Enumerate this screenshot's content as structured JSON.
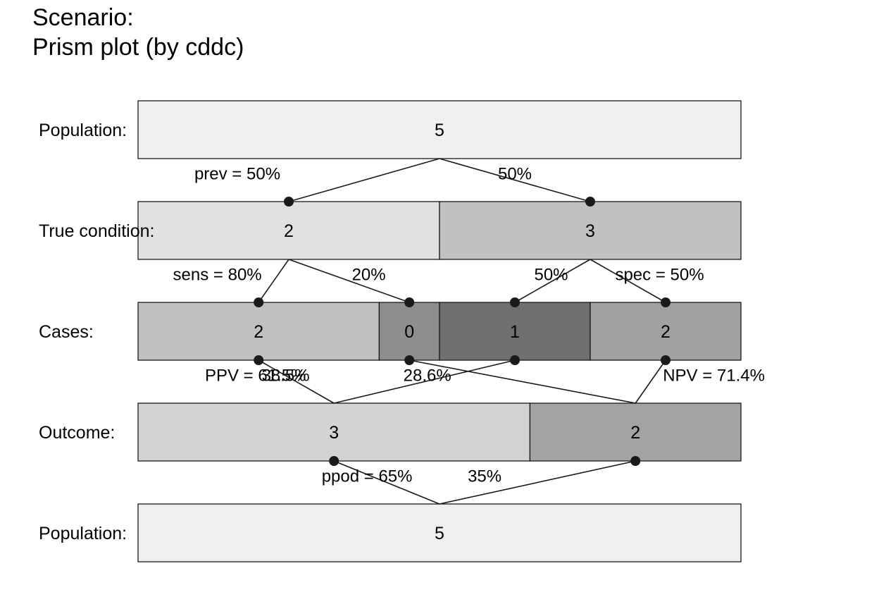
{
  "title": {
    "line1": "Scenario:",
    "line2": "Prism plot (by cddc)"
  },
  "colors": {
    "population": "#efefef",
    "true_positive_cond": "#e1e1e1",
    "true_negative_cond": "#c1c1c1",
    "hit": "#c0c0c0",
    "miss": "#8e8e8e",
    "false_alarm": "#707070",
    "correct_rejection": "#a1a1a1",
    "outcome_positive": "#d3d3d3",
    "outcome_negative": "#a3a3a3",
    "stroke": "#1a1a1a"
  },
  "rows": [
    {
      "label": "Population:",
      "boxes": [
        {
          "value": "5",
          "fraction": 1.0,
          "color": "population"
        }
      ]
    },
    {
      "label": "True condition:",
      "boxes": [
        {
          "value": "2",
          "fraction": 0.5,
          "color": "true_positive_cond"
        },
        {
          "value": "3",
          "fraction": 0.5,
          "color": "true_negative_cond"
        }
      ]
    },
    {
      "label": "Cases:",
      "boxes": [
        {
          "value": "2",
          "fraction": 0.4,
          "color": "hit"
        },
        {
          "value": "0",
          "fraction": 0.1,
          "color": "miss"
        },
        {
          "value": "1",
          "fraction": 0.25,
          "color": "false_alarm"
        },
        {
          "value": "2",
          "fraction": 0.25,
          "color": "correct_rejection"
        }
      ]
    },
    {
      "label": "Outcome:",
      "boxes": [
        {
          "value": "3",
          "fraction": 0.65,
          "color": "outcome_positive"
        },
        {
          "value": "2",
          "fraction": 0.35,
          "color": "outcome_negative"
        }
      ]
    },
    {
      "label": "Population:",
      "boxes": [
        {
          "value": "5",
          "fraction": 1.0,
          "color": "population"
        }
      ]
    }
  ],
  "links": [
    {
      "from": [
        0,
        0
      ],
      "to": [
        1,
        0
      ],
      "label": "prev = 50%"
    },
    {
      "from": [
        0,
        0
      ],
      "to": [
        1,
        1
      ],
      "label": "50%"
    },
    {
      "from": [
        1,
        0
      ],
      "to": [
        2,
        0
      ],
      "label": "sens = 80%"
    },
    {
      "from": [
        1,
        0
      ],
      "to": [
        2,
        1
      ],
      "label": "20%"
    },
    {
      "from": [
        1,
        1
      ],
      "to": [
        2,
        2
      ],
      "label": "50%"
    },
    {
      "from": [
        1,
        1
      ],
      "to": [
        2,
        3
      ],
      "label": "spec = 50%"
    },
    {
      "from": [
        2,
        0
      ],
      "to": [
        3,
        0
      ],
      "label": "PPV = 61.5%"
    },
    {
      "from": [
        2,
        2
      ],
      "to": [
        3,
        0
      ],
      "label": "38.5%"
    },
    {
      "from": [
        2,
        1
      ],
      "to": [
        3,
        1
      ],
      "label": "28.6%"
    },
    {
      "from": [
        2,
        3
      ],
      "to": [
        3,
        1
      ],
      "label": "NPV = 71.4%"
    },
    {
      "from": [
        3,
        0
      ],
      "to": [
        4,
        0
      ],
      "label": "ppod = 65%"
    },
    {
      "from": [
        3,
        1
      ],
      "to": [
        4,
        0
      ],
      "label": "35%"
    }
  ]
}
